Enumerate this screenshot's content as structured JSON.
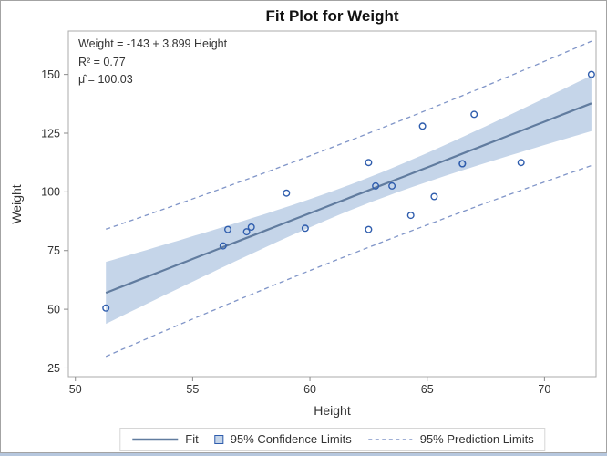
{
  "page": {
    "background": "#b6c7de",
    "border": "#a3a3a3"
  },
  "chart": {
    "title": "Fit Plot for Weight",
    "xlabel": "Height",
    "ylabel": "Weight",
    "inset": {
      "equation": "Weight = -143 + 3.899 Height",
      "r_square": "R² = 0.77",
      "mu_hat": "μ̂ = 100.03"
    },
    "legend": {
      "fit": "Fit",
      "confidence": "95% Confidence Limits",
      "prediction": "95% Prediction Limits"
    }
  },
  "chart_data": {
    "type": "scatter",
    "title": "Fit Plot for Weight",
    "xlabel": "Height",
    "ylabel": "Weight",
    "xlim": [
      49.7,
      72.2
    ],
    "ylim": [
      21.3,
      168.5
    ],
    "xticks": [
      50,
      55,
      60,
      65,
      70
    ],
    "yticks": [
      25,
      50,
      75,
      100,
      125,
      150
    ],
    "grid": false,
    "legend_position": "bottom",
    "points": [
      [
        69.0,
        112.5
      ],
      [
        56.5,
        84.0
      ],
      [
        65.3,
        98.0
      ],
      [
        62.8,
        102.5
      ],
      [
        63.5,
        102.5
      ],
      [
        57.3,
        83.0
      ],
      [
        59.8,
        84.5
      ],
      [
        62.5,
        112.5
      ],
      [
        62.5,
        84.0
      ],
      [
        59.0,
        99.5
      ],
      [
        51.3,
        50.5
      ],
      [
        64.3,
        90.0
      ],
      [
        56.3,
        77.0
      ],
      [
        66.5,
        112.0
      ],
      [
        72.0,
        150.0
      ],
      [
        64.8,
        128.0
      ],
      [
        67.0,
        133.0
      ],
      [
        57.5,
        85.0
      ],
      [
        66.5,
        112.0
      ]
    ],
    "fit": {
      "equation": "Weight = -143 + 3.899 Height",
      "intercept": -143.027,
      "slope": 3.899,
      "r_square": 0.77,
      "mean_predicted": 100.03
    },
    "confidence_level": 0.95,
    "t_critical": 2.1098,
    "colors": {
      "fit_line": "#617c9f",
      "confidence_band": "#c5d5e9",
      "prediction_line": "#8095c8",
      "marker": "#2f5dad",
      "frame": "#ababab",
      "tick": "#8a8a8a",
      "text": "#333333"
    }
  }
}
